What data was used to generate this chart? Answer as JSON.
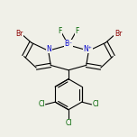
{
  "bg_color": "#f0f0e8",
  "bond_color": "#000000",
  "atom_colors": {
    "Br": "#8B0000",
    "N": "#0000CC",
    "B": "#0000CC",
    "F": "#006400",
    "Cl": "#006400",
    "C": "#000000"
  },
  "fig_width": 1.52,
  "fig_height": 1.52,
  "dpi": 100
}
